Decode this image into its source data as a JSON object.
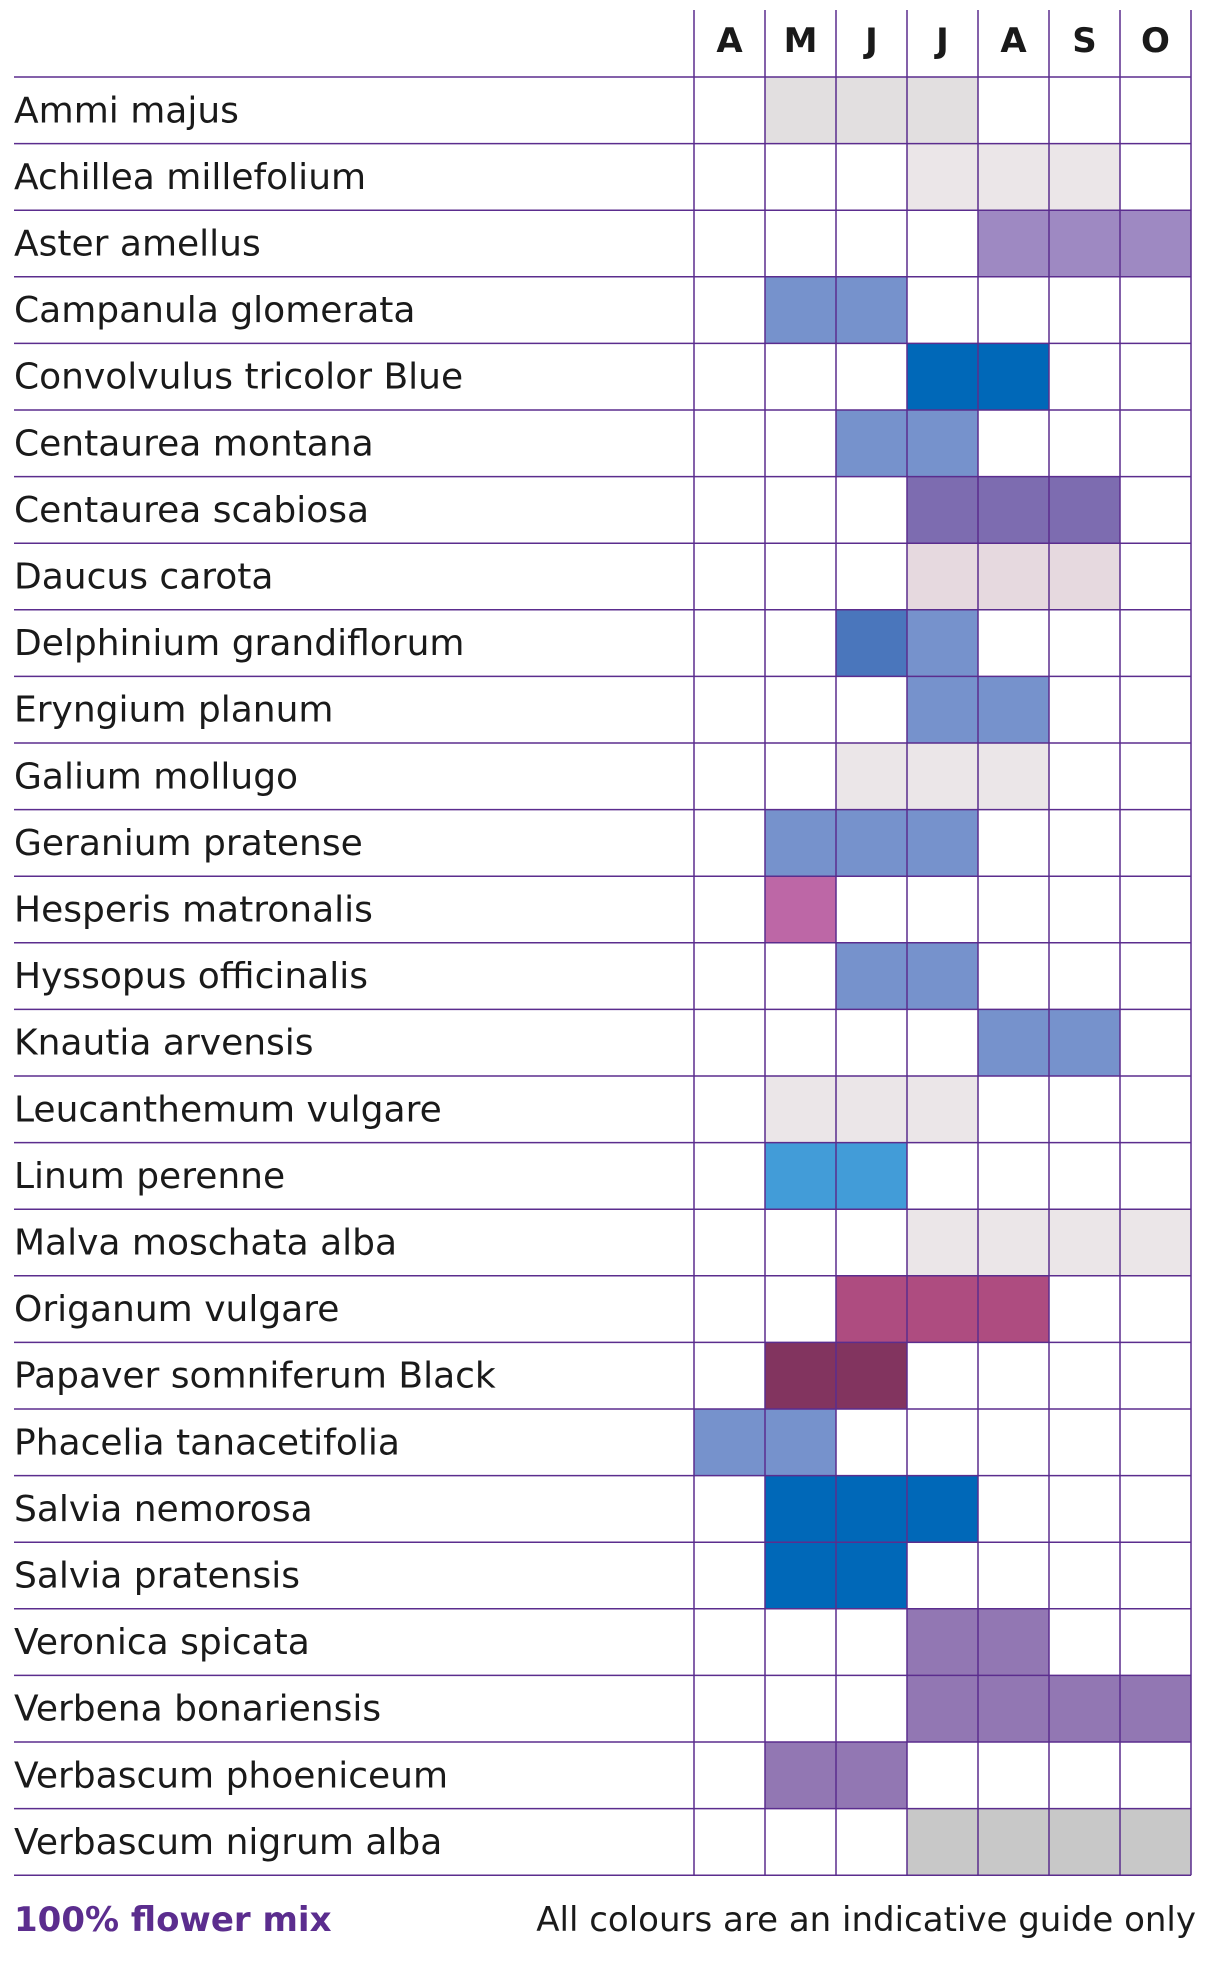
{
  "chart_data": {
    "type": "table",
    "months": [
      "A",
      "M",
      "J",
      "J",
      "A",
      "S",
      "O"
    ],
    "rows": [
      {
        "name": "Ammi majus",
        "cells": [
          "",
          "#e2dfe0",
          "#e2dfe0",
          "#e2dfe0",
          "",
          "",
          ""
        ]
      },
      {
        "name": "Achillea millefolium",
        "cells": [
          "",
          "",
          "",
          "#ebe6e8",
          "#ebe6e8",
          "#ebe6e8",
          ""
        ]
      },
      {
        "name": "Aster amellus",
        "cells": [
          "",
          "",
          "",
          "",
          "#9e89c2",
          "#9e89c2",
          "#9e89c2"
        ]
      },
      {
        "name": "Campanula glomerata",
        "cells": [
          "",
          "#7692cc",
          "#7692cc",
          "",
          "",
          "",
          ""
        ]
      },
      {
        "name": "Convolvulus tricolor Blue",
        "cells": [
          "",
          "",
          "",
          "#0068b8",
          "#0068b8",
          "",
          ""
        ]
      },
      {
        "name": "Centaurea montana",
        "cells": [
          "",
          "",
          "#7692cc",
          "#7692cc",
          "",
          "",
          ""
        ]
      },
      {
        "name": "Centaurea scabiosa",
        "cells": [
          "",
          "",
          "",
          "#7d6cb0",
          "#7d6cb0",
          "#7d6cb0",
          ""
        ]
      },
      {
        "name": "Daucus carota",
        "cells": [
          "",
          "",
          "",
          "#e6d9df",
          "#e6d9df",
          "#e6d9df",
          ""
        ]
      },
      {
        "name": "Delphinium grandiflorum",
        "cells": [
          "",
          "",
          "#4a76bc",
          "#7692cc",
          "",
          "",
          ""
        ]
      },
      {
        "name": "Eryngium planum",
        "cells": [
          "",
          "",
          "",
          "#7692cc",
          "#7692cc",
          "",
          ""
        ]
      },
      {
        "name": "Galium mollugo",
        "cells": [
          "",
          "",
          "#ebe6e8",
          "#ebe6e8",
          "#ebe6e8",
          "",
          ""
        ]
      },
      {
        "name": "Geranium pratense",
        "cells": [
          "",
          "#7692cc",
          "#7692cc",
          "#7692cc",
          "",
          "",
          ""
        ]
      },
      {
        "name": "Hesperis matronalis",
        "cells": [
          "",
          "#bd67a6",
          "",
          "",
          "",
          "",
          ""
        ]
      },
      {
        "name": "Hyssopus officinalis",
        "cells": [
          "",
          "",
          "#7692cc",
          "#7692cc",
          "",
          "",
          ""
        ]
      },
      {
        "name": "Knautia arvensis",
        "cells": [
          "",
          "",
          "",
          "",
          "#7692cc",
          "#7692cc",
          ""
        ]
      },
      {
        "name": "Leucanthemum vulgare",
        "cells": [
          "",
          "#ebe6e8",
          "#ebe6e8",
          "#ebe6e8",
          "",
          "",
          ""
        ]
      },
      {
        "name": "Linum perenne",
        "cells": [
          "",
          "#429cd8",
          "#429cd8",
          "",
          "",
          "",
          ""
        ]
      },
      {
        "name": "Malva moschata alba",
        "cells": [
          "",
          "",
          "",
          "#ebe6e8",
          "#ebe6e8",
          "#ebe6e8",
          "#ebe6e8"
        ]
      },
      {
        "name": "Origanum vulgare",
        "cells": [
          "",
          "",
          "#ae4c80",
          "#ae4c80",
          "#ae4c80",
          "",
          ""
        ]
      },
      {
        "name": "Papaver somniferum Black",
        "cells": [
          "",
          "#82345f",
          "#82345f",
          "",
          "",
          "",
          ""
        ]
      },
      {
        "name": "Phacelia tanacetifolia",
        "cells": [
          "#7692cc",
          "#7692cc",
          "",
          "",
          "",
          "",
          ""
        ]
      },
      {
        "name": "Salvia nemorosa",
        "cells": [
          "",
          "#0068b8",
          "#0068b8",
          "#0068b8",
          "",
          "",
          ""
        ]
      },
      {
        "name": "Salvia pratensis",
        "cells": [
          "",
          "#0068b8",
          "#0068b8",
          "",
          "",
          "",
          ""
        ]
      },
      {
        "name": "Veronica spicata",
        "cells": [
          "",
          "",
          "",
          "#9277b3",
          "#9277b3",
          "",
          ""
        ]
      },
      {
        "name": "Verbena bonariensis",
        "cells": [
          "",
          "",
          "",
          "#9277b3",
          "#9277b3",
          "#9277b3",
          "#9277b3"
        ]
      },
      {
        "name": "Verbascum phoeniceum",
        "cells": [
          "",
          "#9277b3",
          "#9277b3",
          "",
          "",
          "",
          ""
        ]
      },
      {
        "name": "Verbascum nigrum alba",
        "cells": [
          "",
          "",
          "",
          "#c8c8c8",
          "#c8c8c8",
          "#c8c8c8",
          "#c8c8c8"
        ]
      }
    ],
    "grid_color": "#5b2d8e"
  },
  "footer": {
    "left": "100% flower mix",
    "right": "All colours are an indicative guide only"
  }
}
